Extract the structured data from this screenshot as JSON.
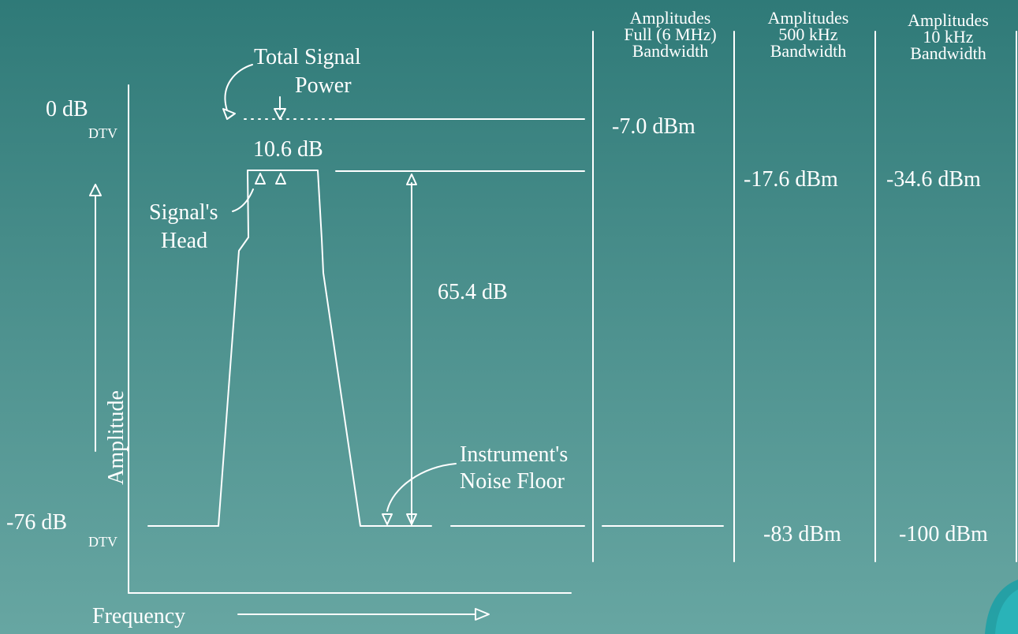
{
  "columns": [
    {
      "lines": [
        "Amplitudes",
        "Full (6 MHz)",
        "Bandwidth"
      ]
    },
    {
      "lines": [
        "Amplitudes",
        "500 kHz",
        "Bandwidth"
      ]
    },
    {
      "lines": [
        "Amplitudes",
        "10 kHz",
        "Bandwidth"
      ]
    }
  ],
  "labels": {
    "total_signal_power": [
      "Total Signal",
      "Power"
    ],
    "signals_head": [
      "Signal's",
      "Head"
    ],
    "noise_floor": [
      "Instrument's",
      "Noise Floor"
    ],
    "zero_db": "0 dB",
    "zero_db_sub": "DTV",
    "minus76_db": "-76 dB",
    "minus76_db_sub": "DTV",
    "head_gap": "10.6 dB",
    "dynamic_range": "65.4 dB",
    "y_axis": "Amplitude",
    "x_axis": "Frequency"
  },
  "values": {
    "full_top": "-7.0 dBm",
    "k500_head": "-17.6 dBm",
    "k10_head": "-34.6 dBm",
    "k500_floor": "-83 dBm",
    "k10_floor": "-100 dBm"
  },
  "colors": {
    "background_top": "#2f7a78",
    "background_bottom": "#67a6a2",
    "ink": "#ffffff"
  }
}
